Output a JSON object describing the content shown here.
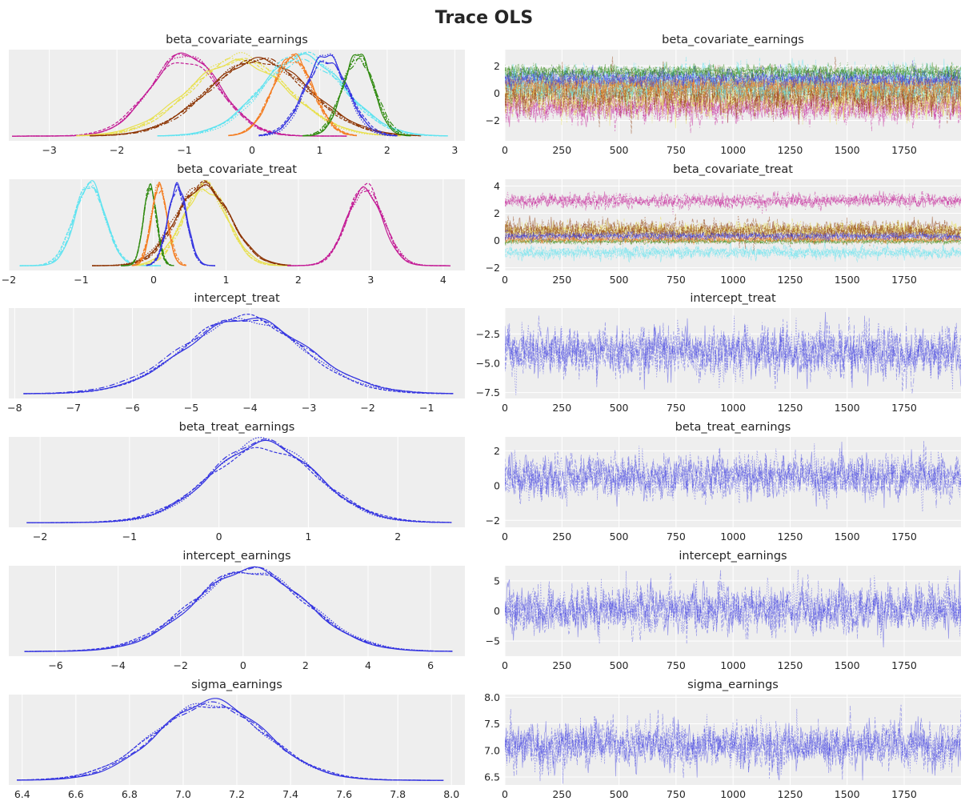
{
  "title": "Trace OLS",
  "chart_data": [
    {
      "type": "line",
      "kind": "kde",
      "title": "beta_covariate_earnings",
      "xlim": [
        -3.6,
        3.15
      ],
      "ylim": [
        0,
        1.15
      ],
      "xticks": [
        -3,
        -2,
        -1,
        0,
        1,
        2,
        3
      ],
      "grid": true,
      "series": [
        {
          "name": "beta_covariate_earnings[0]",
          "color": "#c31a95",
          "mean": -1.0,
          "sd": 0.52,
          "range": [
            -3.55,
            1.4
          ]
        },
        {
          "name": "beta_covariate_earnings[1]",
          "color": "#e8e04e",
          "mean": -0.2,
          "sd": 0.7,
          "range": [
            -2.6,
            2.2
          ]
        },
        {
          "name": "beta_covariate_earnings[2]",
          "color": "#8c3300",
          "mean": 0.1,
          "sd": 0.72,
          "range": [
            -2.4,
            2.5
          ]
        },
        {
          "name": "beta_covariate_earnings[3]",
          "color": "#5ee3f0",
          "mean": 0.75,
          "sd": 0.62,
          "range": [
            -1.4,
            2.9
          ]
        },
        {
          "name": "beta_covariate_earnings[4]",
          "color": "#f47c20",
          "mean": 0.6,
          "sd": 0.3,
          "range": [
            -0.35,
            1.55
          ]
        },
        {
          "name": "beta_covariate_earnings[5]",
          "color": "#3333e0",
          "mean": 1.1,
          "sd": 0.31,
          "range": [
            0.1,
            2.15
          ]
        },
        {
          "name": "beta_covariate_earnings[6]",
          "color": "#2f8a0f",
          "mean": 1.57,
          "sd": 0.24,
          "range": [
            0.75,
            2.35
          ]
        }
      ]
    },
    {
      "type": "line",
      "kind": "trace",
      "title": "beta_covariate_earnings",
      "xlim": [
        0,
        1999
      ],
      "ylim": [
        -3.5,
        3.2
      ],
      "xticks": [
        0,
        250,
        500,
        750,
        1000,
        1250,
        1500,
        1750
      ],
      "yticks": [
        -2,
        0,
        2
      ],
      "grid": true,
      "series": [
        {
          "name": "beta_covariate_earnings[0]",
          "color": "#c31a95",
          "mean": -1.0,
          "sd": 0.52
        },
        {
          "name": "beta_covariate_earnings[1]",
          "color": "#e8e04e",
          "mean": -0.2,
          "sd": 0.7
        },
        {
          "name": "beta_covariate_earnings[2]",
          "color": "#8c3300",
          "mean": 0.1,
          "sd": 0.72
        },
        {
          "name": "beta_covariate_earnings[3]",
          "color": "#5ee3f0",
          "mean": 0.75,
          "sd": 0.62
        },
        {
          "name": "beta_covariate_earnings[4]",
          "color": "#f47c20",
          "mean": 0.6,
          "sd": 0.3
        },
        {
          "name": "beta_covariate_earnings[5]",
          "color": "#3333e0",
          "mean": 1.1,
          "sd": 0.31
        },
        {
          "name": "beta_covariate_earnings[6]",
          "color": "#2f8a0f",
          "mean": 1.57,
          "sd": 0.24
        }
      ]
    },
    {
      "type": "line",
      "kind": "kde",
      "title": "beta_covariate_treat",
      "xlim": [
        -2.0,
        4.3
      ],
      "ylim": [
        0,
        1.15
      ],
      "xticks": [
        -2,
        -1,
        0,
        1,
        2,
        3,
        4
      ],
      "grid": true,
      "series": [
        {
          "name": "beta_covariate_treat[0]",
          "color": "#5ee3f0",
          "mean": -0.88,
          "sd": 0.22,
          "range": [
            -1.85,
            0.1
          ]
        },
        {
          "name": "beta_covariate_treat[1]",
          "color": "#e8e04e",
          "mean": 0.72,
          "sd": 0.3,
          "range": [
            -0.25,
            1.85
          ]
        },
        {
          "name": "beta_covariate_treat[2]",
          "color": "#8c3300",
          "mean": 0.68,
          "sd": 0.38,
          "range": [
            -0.85,
            1.9
          ]
        },
        {
          "name": "beta_covariate_treat[3]",
          "color": "#2f8a0f",
          "mean": -0.05,
          "sd": 0.09,
          "range": [
            -0.45,
            0.28
          ]
        },
        {
          "name": "beta_covariate_treat[4]",
          "color": "#f47c20",
          "mean": 0.08,
          "sd": 0.11,
          "range": [
            -0.3,
            0.45
          ]
        },
        {
          "name": "beta_covariate_treat[5]",
          "color": "#3333e0",
          "mean": 0.33,
          "sd": 0.13,
          "range": [
            -0.1,
            0.85
          ]
        },
        {
          "name": "beta_covariate_treat[6]",
          "color": "#c31a95",
          "mean": 2.92,
          "sd": 0.24,
          "range": [
            1.85,
            4.1
          ]
        }
      ]
    },
    {
      "type": "line",
      "kind": "trace",
      "title": "beta_covariate_treat",
      "xlim": [
        0,
        1999
      ],
      "ylim": [
        -2.2,
        4.5
      ],
      "xticks": [
        0,
        250,
        500,
        750,
        1000,
        1250,
        1500,
        1750
      ],
      "yticks": [
        -2,
        0,
        2,
        4
      ],
      "grid": true,
      "series": [
        {
          "name": "beta_covariate_treat[0]",
          "color": "#5ee3f0",
          "mean": -0.88,
          "sd": 0.22
        },
        {
          "name": "beta_covariate_treat[1]",
          "color": "#e8e04e",
          "mean": 0.72,
          "sd": 0.3
        },
        {
          "name": "beta_covariate_treat[2]",
          "color": "#8c3300",
          "mean": 0.68,
          "sd": 0.38
        },
        {
          "name": "beta_covariate_treat[3]",
          "color": "#2f8a0f",
          "mean": -0.05,
          "sd": 0.09
        },
        {
          "name": "beta_covariate_treat[4]",
          "color": "#f47c20",
          "mean": 0.08,
          "sd": 0.11
        },
        {
          "name": "beta_covariate_treat[5]",
          "color": "#3333e0",
          "mean": 0.33,
          "sd": 0.13
        },
        {
          "name": "beta_covariate_treat[6]",
          "color": "#c31a95",
          "mean": 2.92,
          "sd": 0.24
        }
      ]
    },
    {
      "type": "line",
      "kind": "kde",
      "title": "intercept_treat",
      "xlim": [
        -8.1,
        -0.35
      ],
      "ylim": [
        0,
        1.15
      ],
      "xticks": [
        -8,
        -7,
        -6,
        -5,
        -4,
        -3,
        -2,
        -1
      ],
      "grid": true,
      "series": [
        {
          "name": "intercept_treat",
          "color": "#3333e0",
          "mean": -4.1,
          "sd": 1.0,
          "range": [
            -7.85,
            -0.55
          ]
        }
      ]
    },
    {
      "type": "line",
      "kind": "trace",
      "title": "intercept_treat",
      "xlim": [
        0,
        1999
      ],
      "ylim": [
        -8.0,
        -0.3
      ],
      "xticks": [
        0,
        250,
        500,
        750,
        1000,
        1250,
        1500,
        1750
      ],
      "yticks": [
        -7.5,
        -5.0,
        -2.5
      ],
      "ytick_labels": [
        "−7.5",
        "−5.0",
        "−2.5"
      ],
      "grid": true,
      "series": [
        {
          "name": "intercept_treat",
          "color": "#3333e0",
          "mean": -4.1,
          "sd": 1.0
        }
      ]
    },
    {
      "type": "line",
      "kind": "kde",
      "title": "beta_treat_earnings",
      "xlim": [
        -2.35,
        2.75
      ],
      "ylim": [
        0,
        1.15
      ],
      "xticks": [
        -2,
        -1,
        0,
        1,
        2
      ],
      "grid": true,
      "series": [
        {
          "name": "beta_treat_earnings",
          "color": "#3333e0",
          "mean": 0.5,
          "sd": 0.6,
          "range": [
            -2.15,
            2.6
          ]
        }
      ]
    },
    {
      "type": "line",
      "kind": "trace",
      "title": "beta_treat_earnings",
      "xlim": [
        0,
        1999
      ],
      "ylim": [
        -2.4,
        2.8
      ],
      "xticks": [
        0,
        250,
        500,
        750,
        1000,
        1250,
        1500,
        1750
      ],
      "yticks": [
        -2,
        0,
        2
      ],
      "grid": true,
      "series": [
        {
          "name": "beta_treat_earnings",
          "color": "#3333e0",
          "mean": 0.5,
          "sd": 0.6
        }
      ]
    },
    {
      "type": "line",
      "kind": "kde",
      "title": "intercept_earnings",
      "xlim": [
        -7.5,
        7.1
      ],
      "ylim": [
        0,
        1.15
      ],
      "xticks": [
        -6,
        -4,
        -2,
        0,
        2,
        4,
        6
      ],
      "grid": true,
      "series": [
        {
          "name": "intercept_earnings",
          "color": "#3333e0",
          "mean": 0.2,
          "sd": 1.85,
          "range": [
            -7.0,
            6.7
          ]
        }
      ]
    },
    {
      "type": "line",
      "kind": "trace",
      "title": "intercept_earnings",
      "xlim": [
        0,
        1999
      ],
      "ylim": [
        -7.5,
        7.5
      ],
      "xticks": [
        0,
        250,
        500,
        750,
        1000,
        1250,
        1500,
        1750
      ],
      "yticks": [
        -5,
        0,
        5
      ],
      "grid": true,
      "series": [
        {
          "name": "intercept_earnings",
          "color": "#3333e0",
          "mean": 0.2,
          "sd": 1.85
        }
      ]
    },
    {
      "type": "line",
      "kind": "kde",
      "title": "sigma_earnings",
      "xlim": [
        6.35,
        8.05
      ],
      "ylim": [
        0,
        1.15
      ],
      "xticks": [
        6.4,
        6.6,
        6.8,
        7.0,
        7.2,
        7.4,
        7.6,
        7.8,
        8.0
      ],
      "xtick_labels": [
        "6.4",
        "6.6",
        "6.8",
        "7.0",
        "7.2",
        "7.4",
        "7.6",
        "7.8",
        "8.0"
      ],
      "grid": true,
      "series": [
        {
          "name": "sigma_earnings",
          "color": "#3333e0",
          "mean": 7.1,
          "sd": 0.2,
          "range": [
            6.38,
            7.97
          ]
        }
      ]
    },
    {
      "type": "line",
      "kind": "trace",
      "title": "sigma_earnings",
      "xlim": [
        0,
        1999
      ],
      "ylim": [
        6.35,
        8.05
      ],
      "xticks": [
        0,
        250,
        500,
        750,
        1000,
        1250,
        1500,
        1750
      ],
      "yticks": [
        6.5,
        7.0,
        7.5,
        8.0
      ],
      "ytick_labels": [
        "6.5",
        "7.0",
        "7.5",
        "8.0"
      ],
      "grid": true,
      "series": [
        {
          "name": "sigma_earnings",
          "color": "#3333e0",
          "mean": 7.1,
          "sd": 0.2
        }
      ]
    }
  ]
}
